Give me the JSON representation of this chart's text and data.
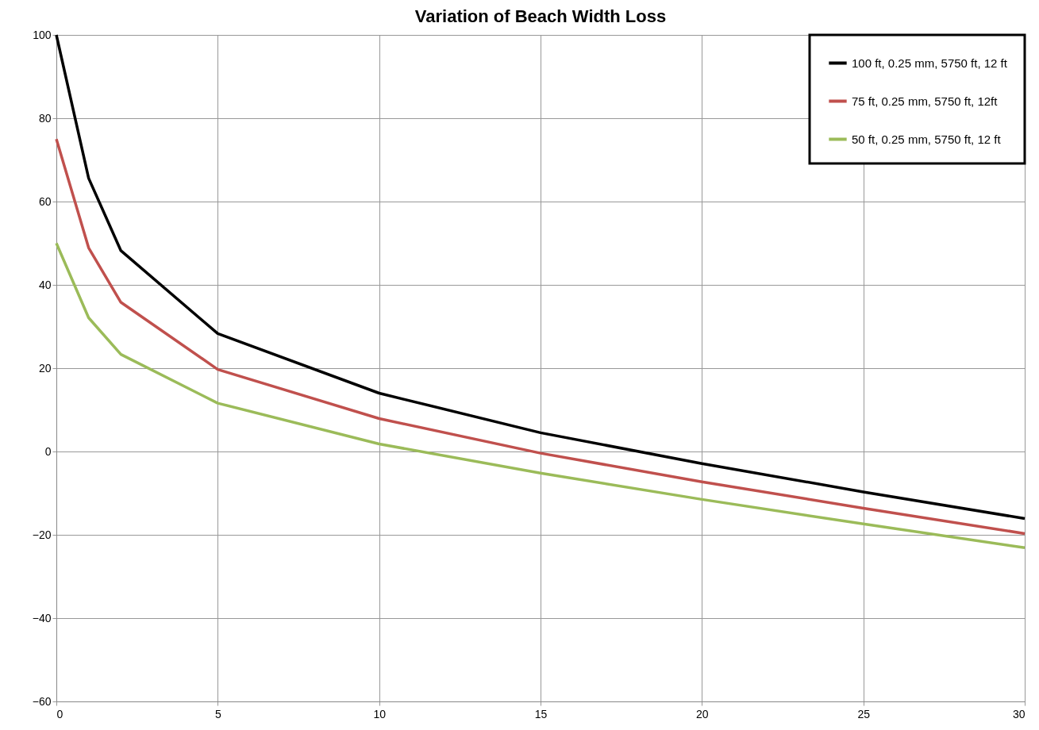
{
  "chart_data": {
    "type": "line",
    "title": "Variation of Beach Width Loss",
    "x": [
      0,
      1,
      2,
      5,
      10,
      15,
      20,
      25,
      30
    ],
    "series": [
      {
        "name": "100 ft, 0.25 mm, 5750 ft, 12 ft",
        "color": "#000000",
        "values": [
          100,
          65.6,
          48.2,
          28.3,
          14.0,
          4.5,
          -2.9,
          -9.7,
          -16.1
        ]
      },
      {
        "name": "75 ft, 0.25 mm, 5750 ft, 12ft",
        "color": "#c0504d",
        "values": [
          75,
          48.9,
          35.8,
          19.7,
          7.9,
          -0.4,
          -7.3,
          -13.6,
          -19.7
        ]
      },
      {
        "name": "50 ft, 0.25 mm, 5750 ft, 12 ft",
        "color": "#9bbb59",
        "values": [
          50,
          32.1,
          23.3,
          11.6,
          1.8,
          -5.2,
          -11.5,
          -17.4,
          -23.1
        ]
      }
    ],
    "xlim": [
      0,
      30
    ],
    "xticks": [
      0,
      5,
      10,
      15,
      20,
      25,
      30
    ],
    "ylim": [
      -60,
      100
    ],
    "yticks": [
      -60,
      -40,
      -20,
      0,
      20,
      40,
      60,
      80,
      100
    ],
    "grid": true,
    "legend": "top right",
    "marker": "none",
    "line_style": "solid"
  }
}
